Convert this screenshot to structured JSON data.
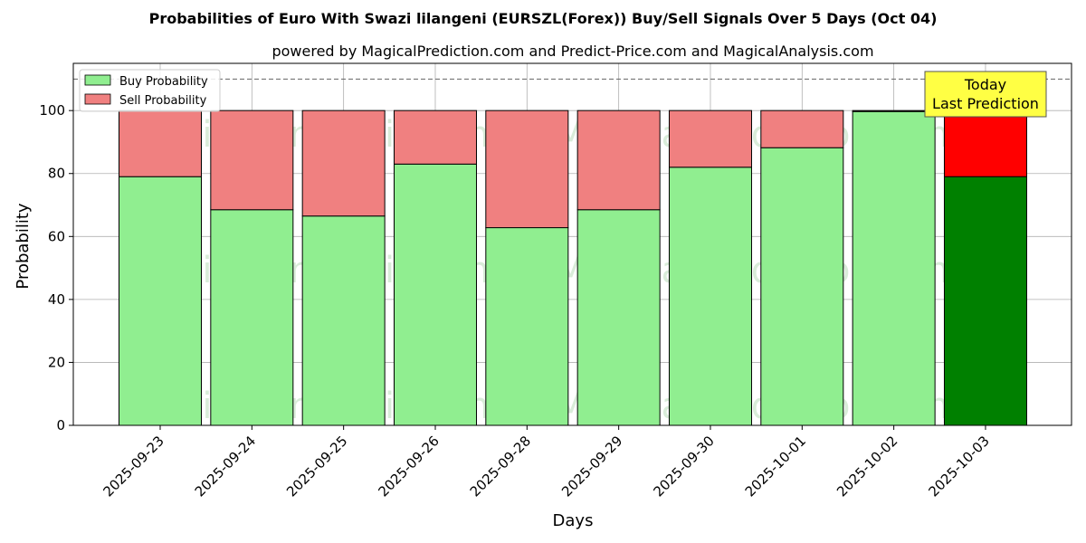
{
  "chart_data": {
    "type": "bar",
    "stacked": true,
    "title": "Probabilities of Euro With Swazi lilangeni (EURSZL(Forex)) Buy/Sell Signals Over 5 Days (Oct 04)",
    "subtitle": "powered by MagicalPrediction.com and Predict-Price.com and MagicalAnalysis.com",
    "xlabel": "Days",
    "ylabel": "Probability",
    "ylim": [
      0,
      115
    ],
    "yticks": [
      0,
      20,
      40,
      60,
      80,
      100
    ],
    "grid": true,
    "legend_position": "top-left",
    "reference_line": 110,
    "categories": [
      "2025-09-23",
      "2025-09-24",
      "2025-09-25",
      "2025-09-26",
      "2025-09-28",
      "2025-09-29",
      "2025-09-30",
      "2025-10-01",
      "2025-10-02",
      "2025-10-03"
    ],
    "series": [
      {
        "name": "Buy Probability",
        "color": "#90ee90",
        "values": [
          79,
          68.5,
          66.5,
          83,
          62.8,
          68.5,
          82,
          88.2,
          99.7,
          79
        ]
      },
      {
        "name": "Sell Probability",
        "color": "#f08080",
        "values": [
          21,
          31.5,
          33.5,
          17,
          37.2,
          31.5,
          18,
          11.8,
          0.3,
          21
        ]
      }
    ],
    "highlight": {
      "index": 9,
      "buy_color": "#008000",
      "sell_color": "#ff0000"
    },
    "annotation": {
      "lines": [
        "Today",
        "Last Prediction"
      ],
      "bg_color": "#ffff44"
    },
    "watermarks": [
      "MagicalAnalysis.com",
      "MagicalPrediction.com"
    ]
  }
}
